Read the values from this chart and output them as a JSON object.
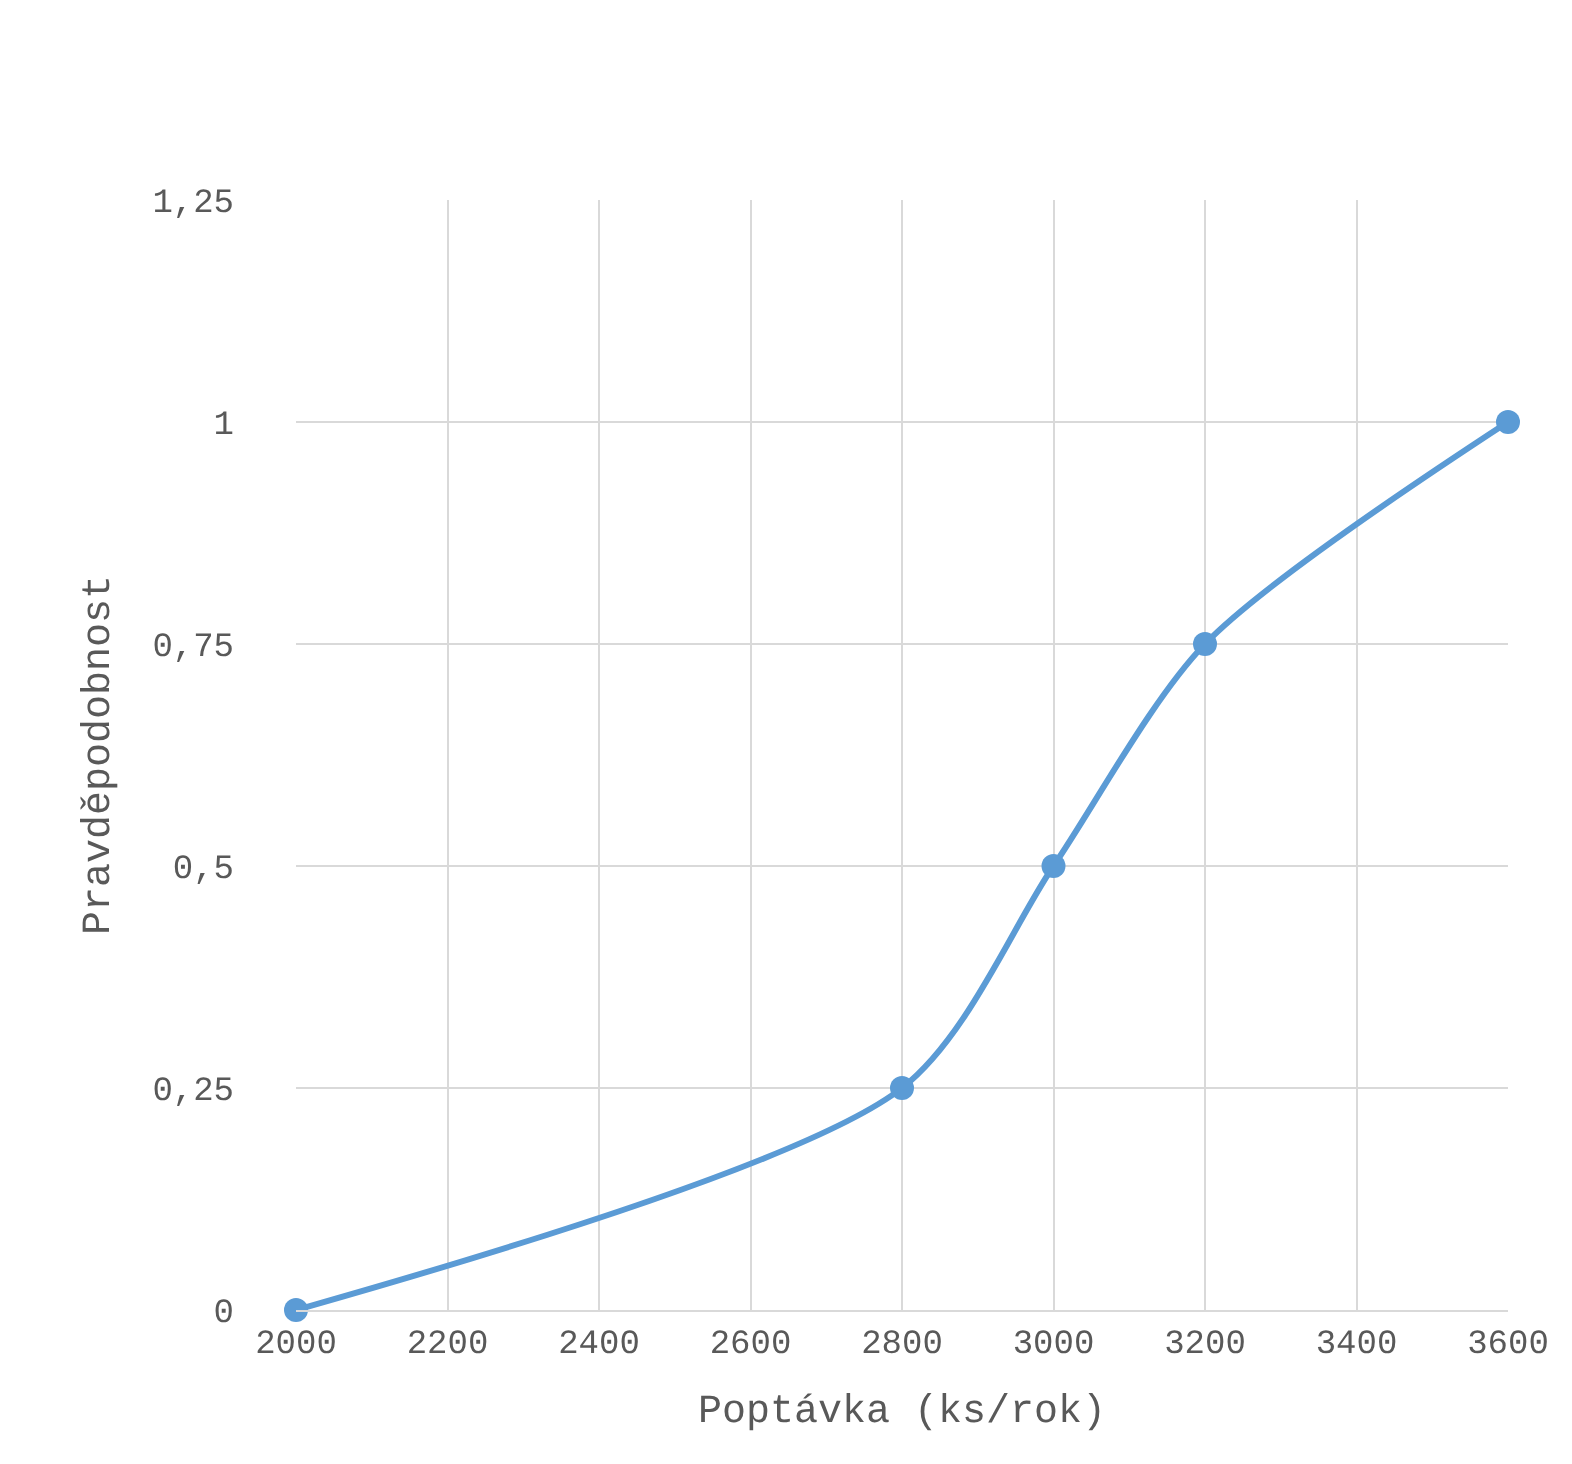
{
  "chart_data": {
    "type": "line",
    "xlabel": "Poptávka (ks/rok)",
    "ylabel": "Pravděpodobnost",
    "x": [
      2000,
      2800,
      3000,
      3200,
      3600
    ],
    "series": [
      {
        "color": "#5b9bd5",
        "values": [
          0,
          0.25,
          0.5,
          0.75,
          1
        ]
      }
    ],
    "xlim": [
      2000,
      3600
    ],
    "xticks": [
      2000,
      2200,
      2400,
      2600,
      2800,
      3000,
      3200,
      3400,
      3600
    ],
    "ylim": [
      0,
      1.25
    ],
    "yticks": [
      {
        "value": 0,
        "label": "0"
      },
      {
        "value": 0.25,
        "label": "0,25"
      },
      {
        "value": 0.5,
        "label": "0,5"
      },
      {
        "value": 0.75,
        "label": "0,75"
      },
      {
        "value": 1,
        "label": "1"
      },
      {
        "value": 1.25,
        "label": "1,25"
      }
    ],
    "grid": true,
    "marker": "circle",
    "line_style": "solid",
    "legend": false
  }
}
